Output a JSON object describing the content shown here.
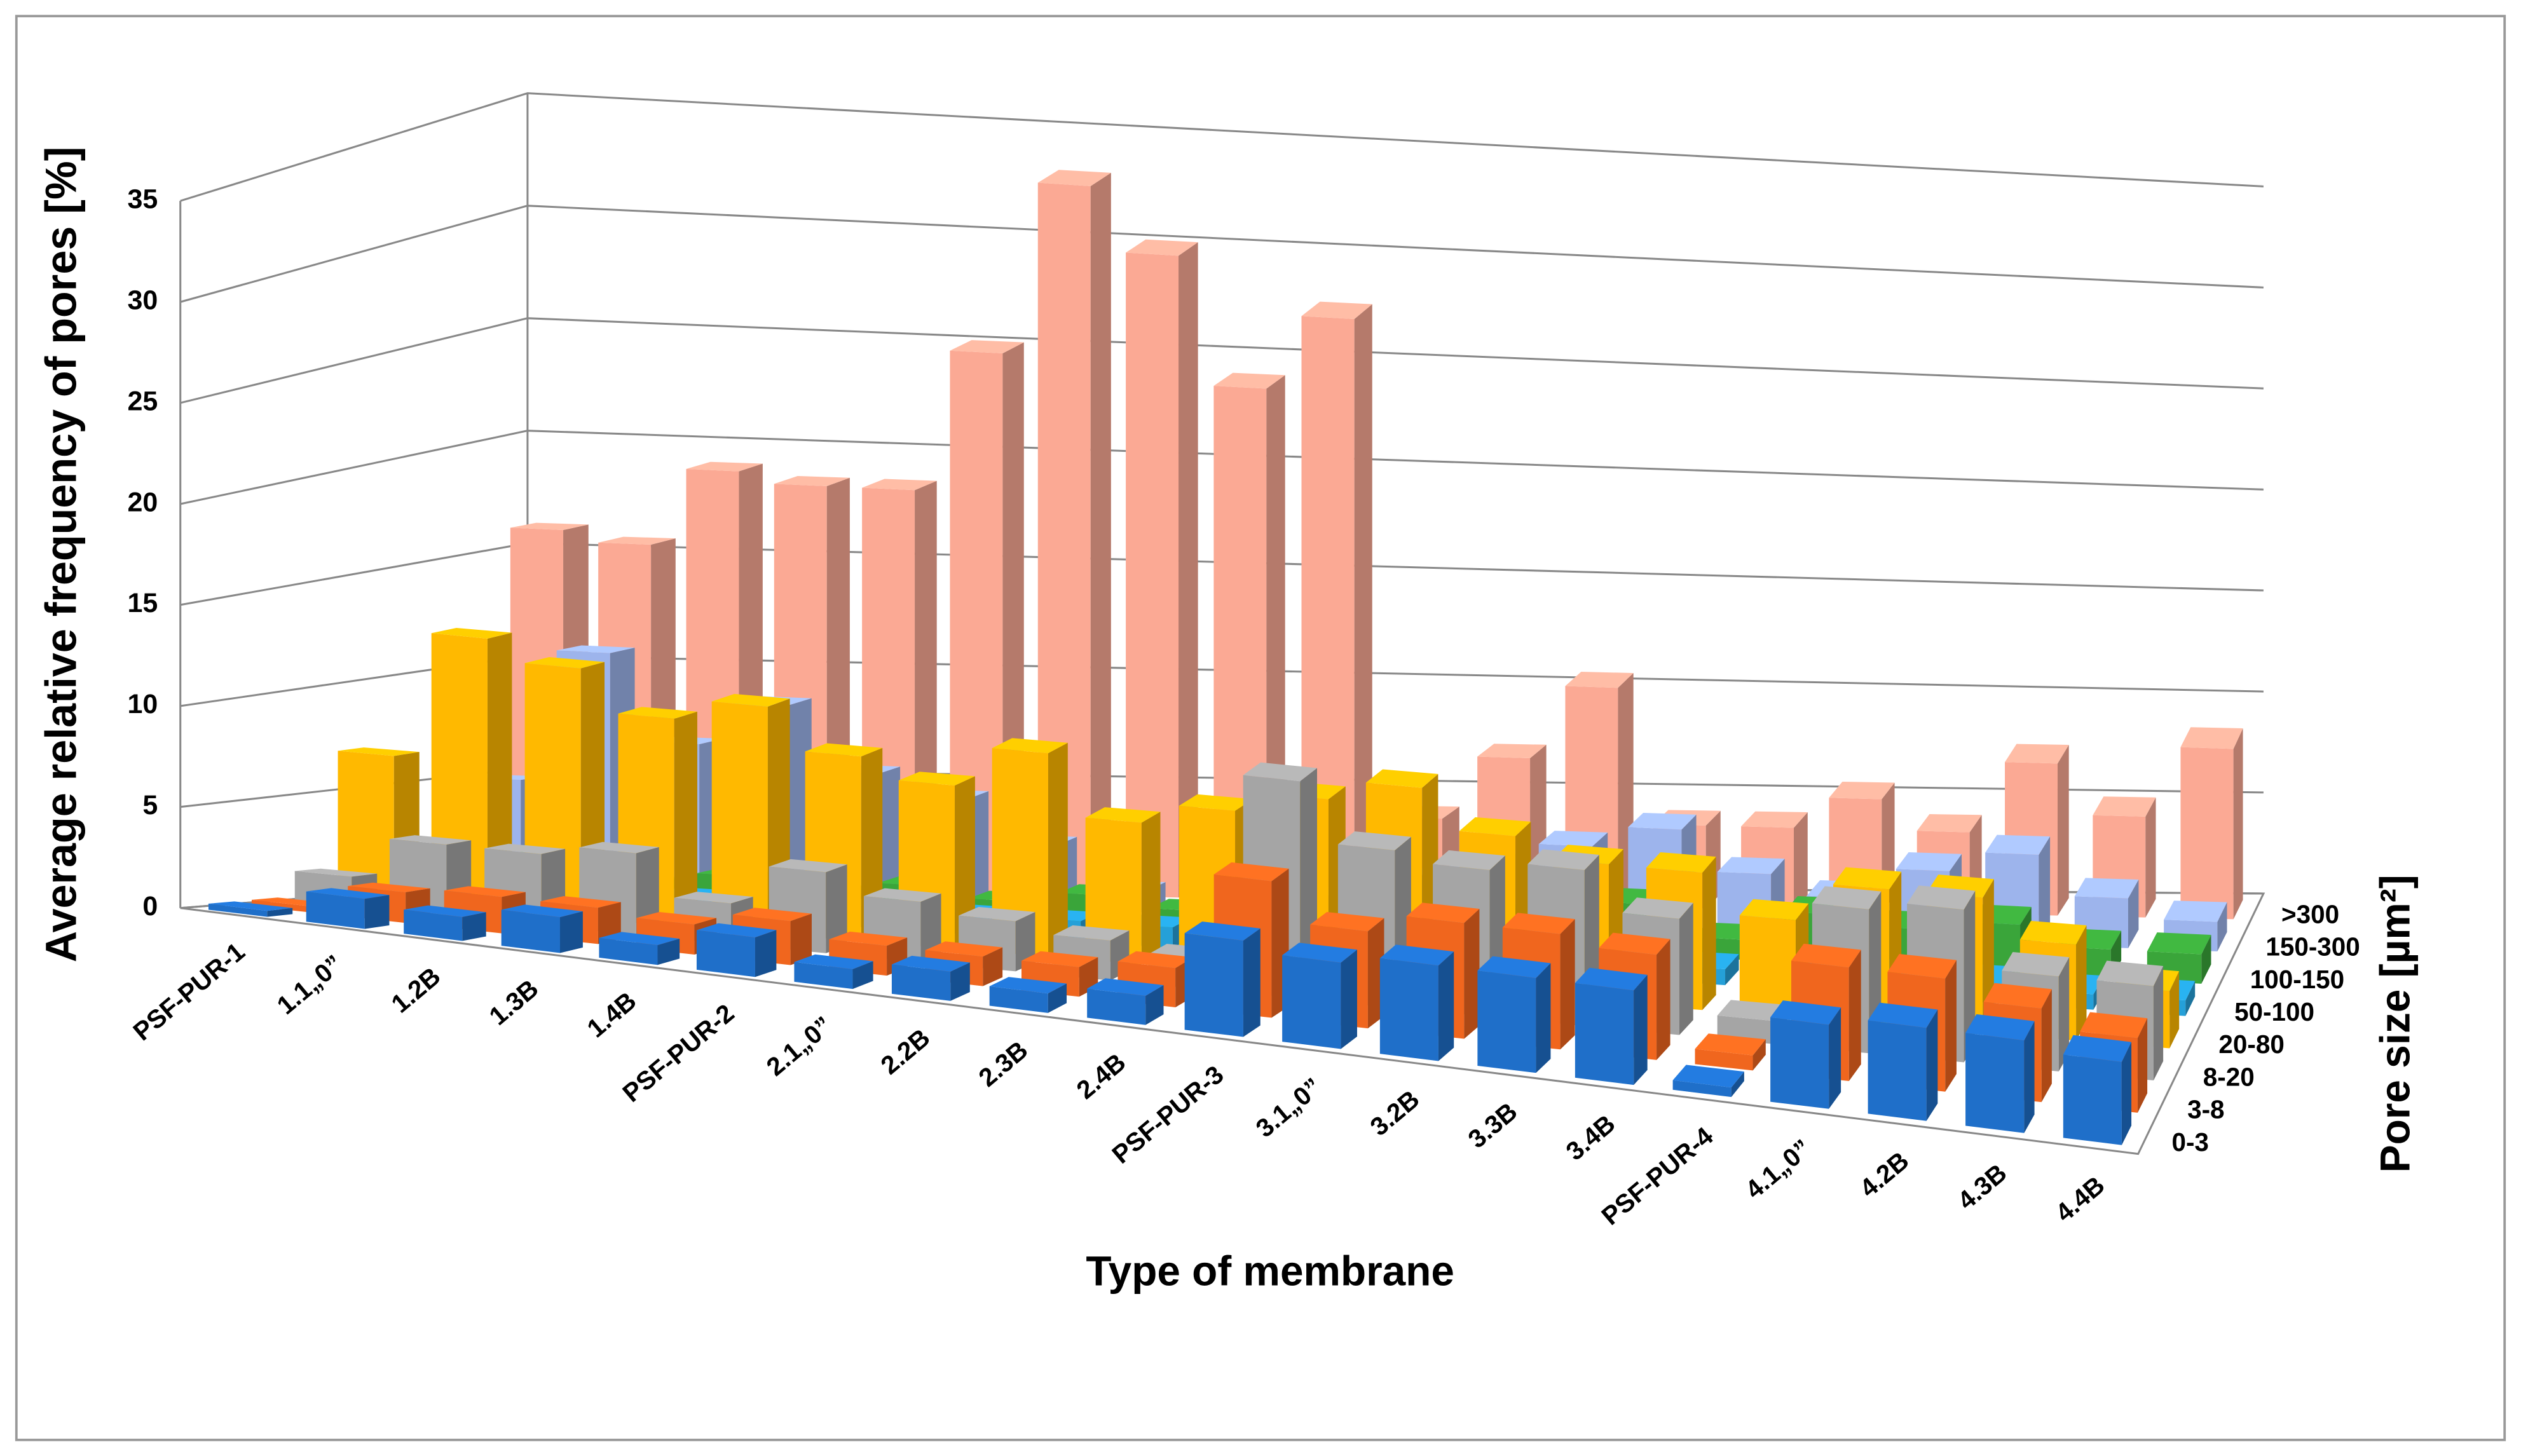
{
  "chart_data": {
    "type": "bar3d",
    "xlabel": "Type of membrane",
    "ylabel": "Average relative frequency of pores [%]",
    "zlabel": "Pore size [µm²]",
    "categories": [
      "PSF-PUR-1",
      "1.1„0”",
      "1.2B",
      "1.3B",
      "1.4B",
      "PSF-PUR-2",
      "2.1„0”",
      "2.2B",
      "2.3B",
      "2.4B",
      "PSF-PUR-3",
      "3.1„0”",
      "3.2B",
      "3.3B",
      "3.4B",
      "PSF-PUR-4",
      "4.1„0”",
      "4.2B",
      "4.3B",
      "4.4B"
    ],
    "ylim": [
      0,
      35
    ],
    "yticks": [
      0,
      5,
      10,
      15,
      20,
      25,
      30,
      35
    ],
    "grid": true,
    "series": [
      {
        "name": "0-3",
        "color": "#1f6fc9",
        "values": [
          0.3,
          1.5,
          1.2,
          1.8,
          1,
          2,
          1,
          1.5,
          1,
          1.5,
          5,
          4.5,
          5,
          5,
          5,
          0.5,
          4.5,
          5,
          5,
          4.5
        ]
      },
      {
        "name": "3-8",
        "color": "#f0661e",
        "values": [
          0.3,
          1.5,
          1.8,
          1.8,
          1.5,
          2.2,
          1.5,
          1.5,
          1.5,
          2,
          7,
          5,
          6,
          6,
          5.5,
          0.8,
          6,
          6,
          5,
          4
        ]
      },
      {
        "name": "8-20",
        "color": "#a5a5a5",
        "values": [
          1.5,
          3.5,
          3.5,
          4,
          2,
          4,
          3,
          2.5,
          2,
          1.5,
          11,
          8,
          7.5,
          8,
          6,
          1.2,
          7.5,
          8,
          5,
          5
        ]
      },
      {
        "name": "20-80",
        "color": "#ffb900",
        "values": [
          7,
          13,
          12,
          10,
          11,
          9,
          8,
          10,
          7,
          8,
          9,
          10,
          8,
          7,
          7,
          5,
          7,
          7,
          5,
          3
        ]
      },
      {
        "name": "50-100",
        "color": "#25a0d8",
        "values": [
          1,
          1.5,
          2,
          1,
          1.2,
          1,
          1,
          1,
          1,
          1,
          0.5,
          0.5,
          1,
          1,
          0.8,
          1,
          1,
          1,
          0.8,
          0.8
        ]
      },
      {
        "name": "100-150",
        "color": "#3aa53a",
        "values": [
          1.5,
          2,
          1,
          1.5,
          1,
          1.5,
          1,
          1.5,
          1,
          1,
          0.5,
          0.5,
          2,
          2.5,
          1,
          2.5,
          2,
          2.5,
          1.5,
          1.5
        ]
      },
      {
        "name": "150-300",
        "color": "#9db4ec",
        "values": [
          5,
          11,
          7,
          9,
          6,
          5,
          3,
          1,
          1,
          1,
          2,
          3,
          4,
          5,
          3,
          2,
          3.5,
          4.5,
          2.5,
          1.5
        ]
      },
      {
        "name": ">300",
        "color": "#fba994",
        "values": [
          16,
          15.5,
          19,
          18.5,
          18.5,
          25,
          33,
          30,
          24,
          27.5,
          4,
          7,
          10.5,
          4,
          4,
          5.5,
          4,
          7.5,
          5,
          8.5
        ]
      }
    ]
  }
}
